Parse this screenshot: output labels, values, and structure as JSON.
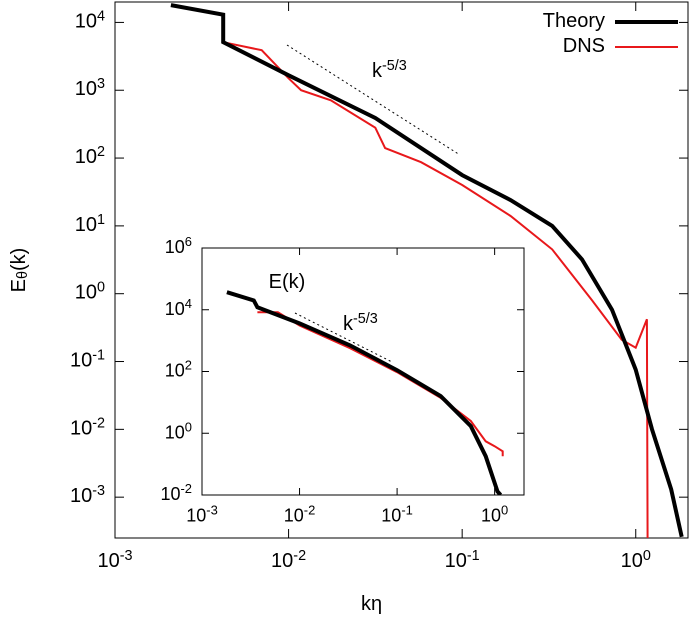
{
  "chart_data": [
    {
      "type": "line",
      "log_x": true,
      "log_y": true,
      "x_label": "kη",
      "y_label": "E_{θ}(k)",
      "annotation": "k^{-5/3}",
      "legend": "top-right",
      "xlim": [
        0.001,
        2
      ],
      "ylim": [
        0.00025,
        20000
      ],
      "xticks": [
        {
          "value": 0.001,
          "label": "10^{-3}"
        },
        {
          "value": 0.01,
          "label": "10^{-2}"
        },
        {
          "value": 0.1,
          "label": "10^{-1}"
        },
        {
          "value": 1,
          "label": "10^{0}"
        }
      ],
      "yticks": [
        {
          "value": 0.001,
          "label": "10^{-3}"
        },
        {
          "value": 0.01,
          "label": "10^{-2}"
        },
        {
          "value": 0.1,
          "label": "10^{-1}"
        },
        {
          "value": 1,
          "label": "10^{0}"
        },
        {
          "value": 10,
          "label": "10^{1}"
        },
        {
          "value": 100,
          "label": "10^{2}"
        },
        {
          "value": 1000,
          "label": "10^{3}"
        },
        {
          "value": 10000,
          "label": "10^{4}"
        }
      ],
      "series": [
        {
          "name": "Theory",
          "color": "#000000",
          "x": [
            0.0021,
            0.0042,
            0.0042,
            0.01,
            0.0316,
            0.1,
            0.19,
            0.33,
            0.49,
            0.73,
            1.0,
            1.24,
            1.6,
            1.84
          ],
          "values": [
            18000,
            13000,
            5100,
            1660,
            390,
            56,
            24,
            10,
            3.2,
            0.58,
            0.076,
            0.01,
            0.0013,
            0.00026
          ]
        },
        {
          "name": "DNS",
          "color": "#e8181b",
          "x": [
            0.0042,
            0.007,
            0.01,
            0.0118,
            0.0175,
            0.0316,
            0.036,
            0.058,
            0.1,
            0.19,
            0.33,
            0.56,
            0.83,
            1.0,
            1.16,
            1.17
          ],
          "values": [
            5100,
            3900,
            1500,
            1000,
            710,
            280,
            140,
            87,
            40,
            14,
            4.5,
            0.8,
            0.21,
            0.16,
            0.42,
            0.0002
          ]
        }
      ]
    },
    {
      "type": "line",
      "log_x": true,
      "log_y": true,
      "title": "E(k)",
      "annotation": "k^{-5/3}",
      "xlim": [
        0.001,
        2
      ],
      "ylim": [
        0.01,
        1000000
      ],
      "xticks": [
        {
          "value": 0.001,
          "label": "10^{-3}"
        },
        {
          "value": 0.01,
          "label": "10^{-2}"
        },
        {
          "value": 0.1,
          "label": "10^{-1}"
        },
        {
          "value": 1,
          "label": "10^{0}"
        }
      ],
      "yticks": [
        {
          "value": 0.01,
          "label": "10^{-2}"
        },
        {
          "value": 1,
          "label": "10^{0}"
        },
        {
          "value": 100,
          "label": "10^{2}"
        },
        {
          "value": 10000,
          "label": "10^{4}"
        },
        {
          "value": 1000000,
          "label": "10^{6}"
        }
      ],
      "series": [
        {
          "color": "#000000",
          "x": [
            0.0018,
            0.0034,
            0.0037,
            0.01,
            0.033,
            0.1,
            0.28,
            0.57,
            0.81,
            1.07,
            1.15
          ],
          "values": [
            37000,
            20000,
            12000,
            3600,
            700,
            110,
            16,
            1.7,
            0.18,
            0.013,
            0.01
          ]
        },
        {
          "color": "#e8181b",
          "x": [
            0.0037,
            0.006,
            0.01,
            0.033,
            0.1,
            0.28,
            0.57,
            0.81,
            1.0,
            1.21,
            1.21
          ],
          "values": [
            8300,
            8300,
            3100,
            570,
            95,
            14,
            2.5,
            0.55,
            0.38,
            0.26,
            0.18
          ]
        }
      ]
    }
  ]
}
